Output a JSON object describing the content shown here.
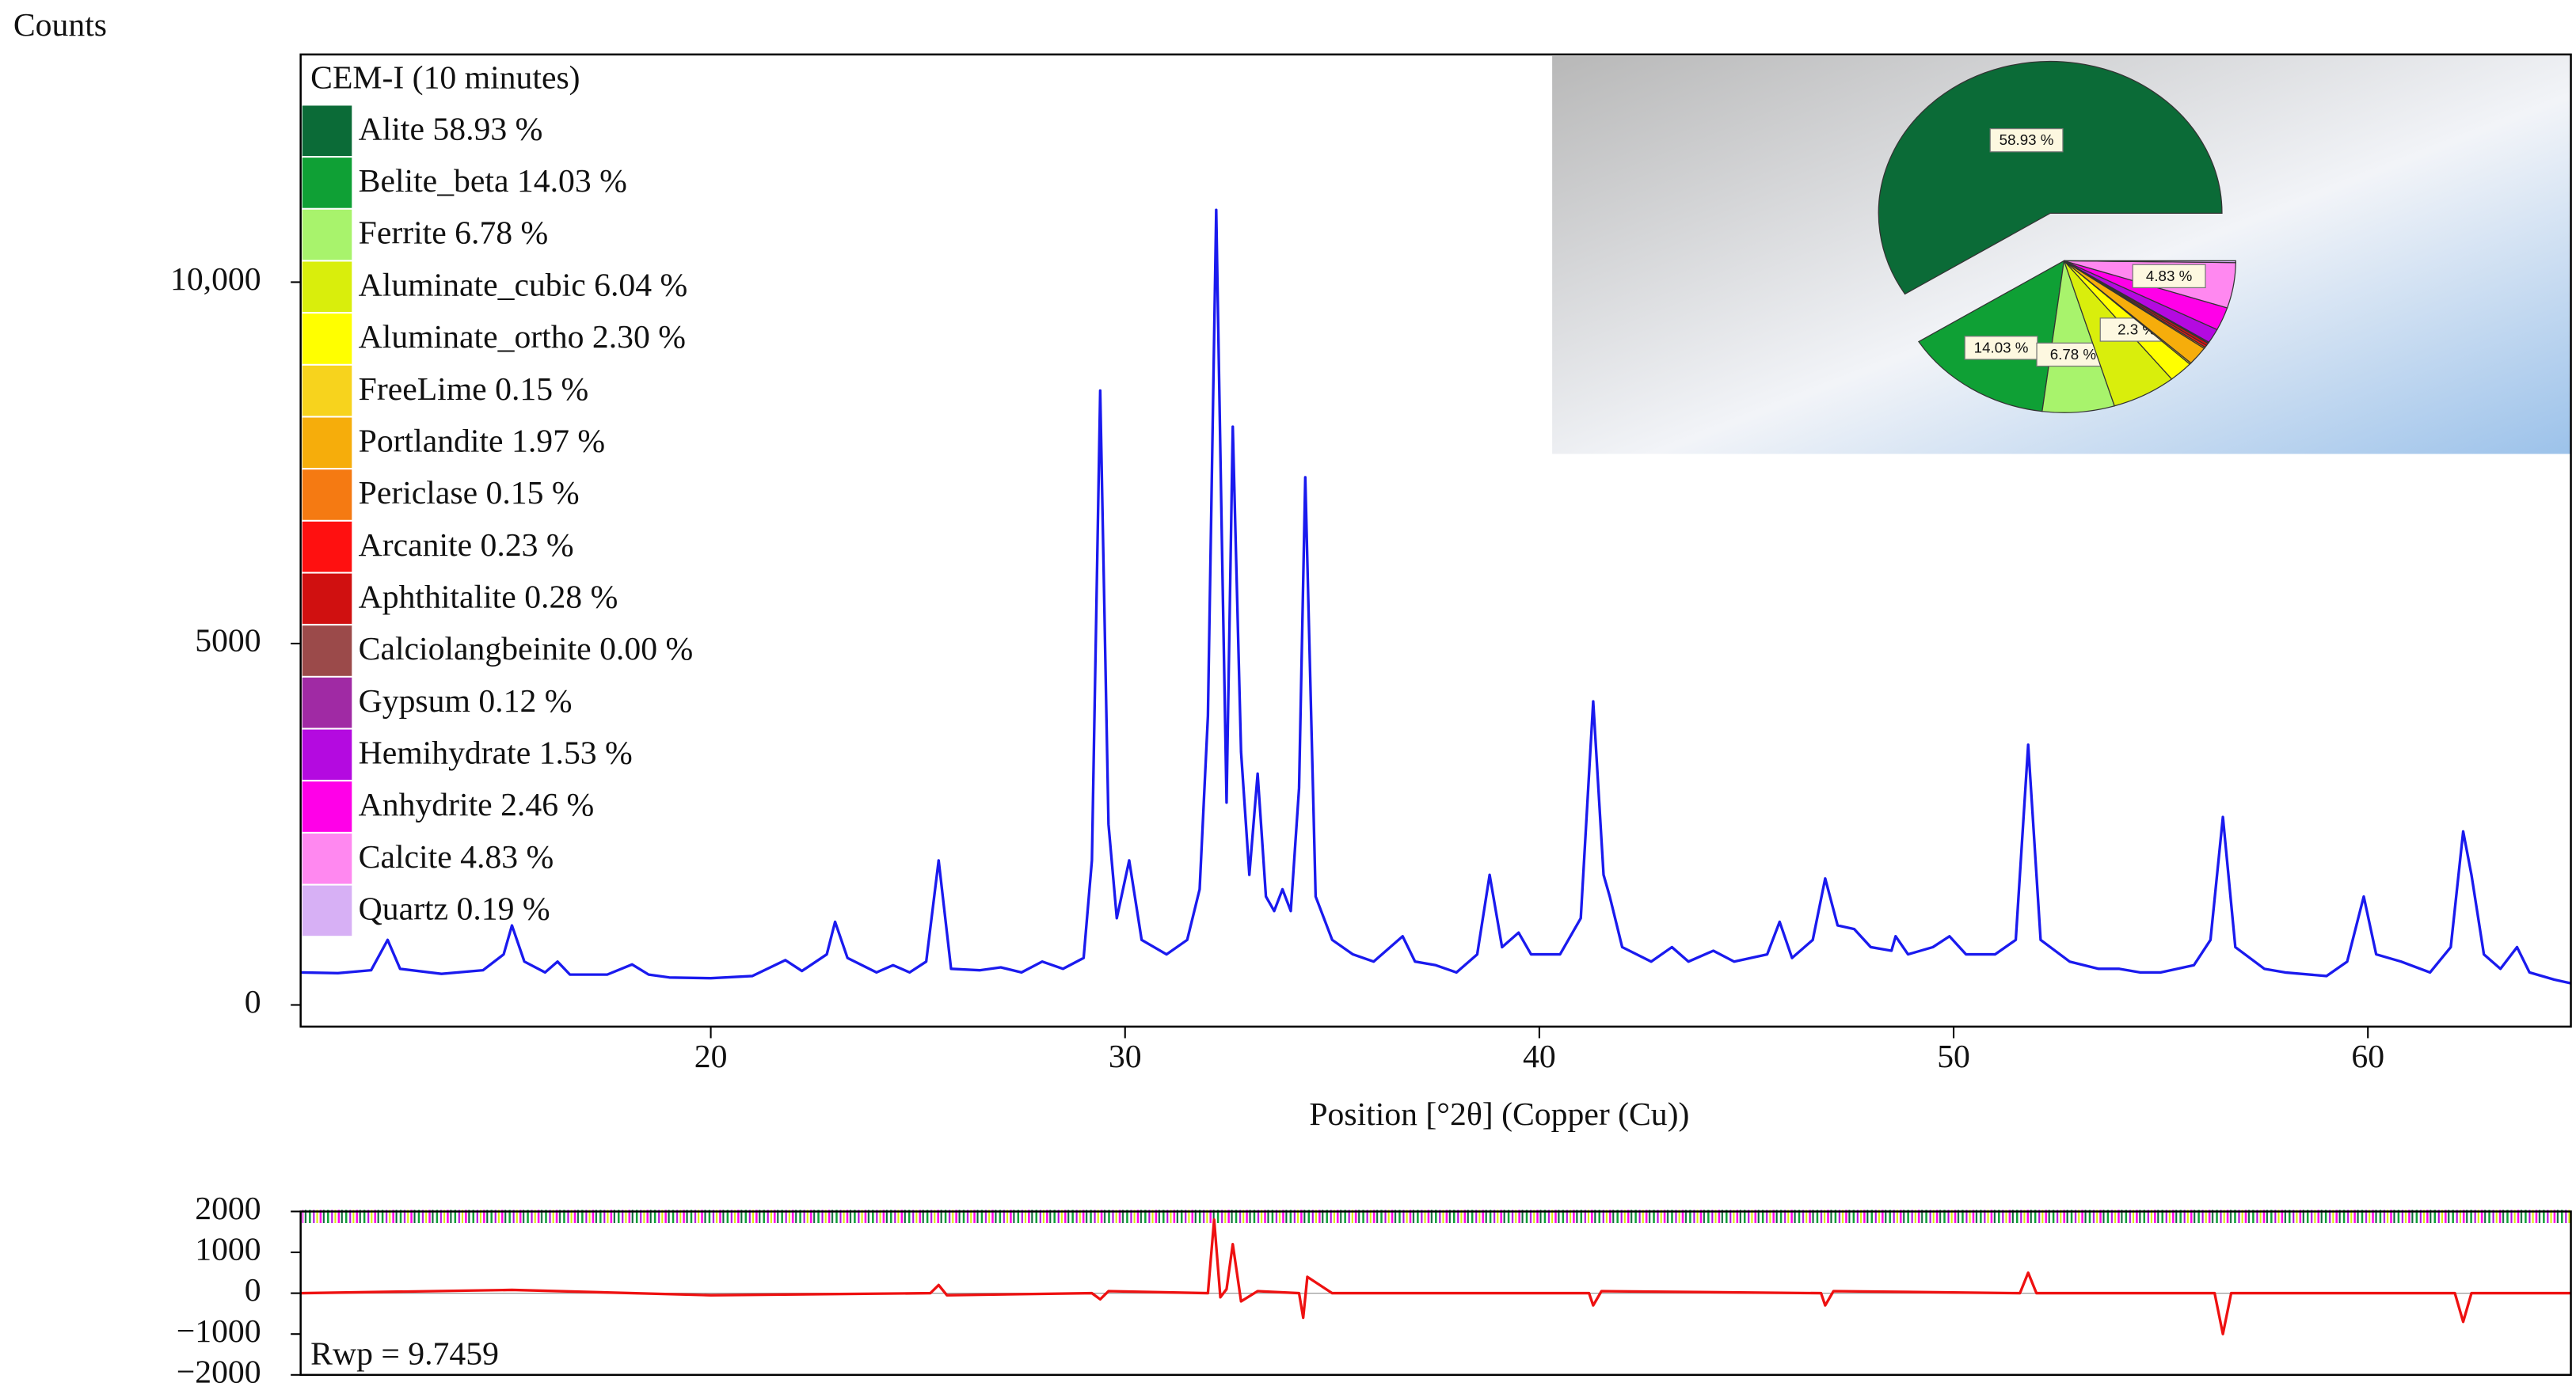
{
  "chart_data": [
    {
      "type": "line",
      "y_label": "Counts",
      "x_label": "Position [°2θ] (Copper (Cu))",
      "legend_title": "CEM-I (10 minutes)",
      "xlim": [
        10.1,
        64.9
      ],
      "ylim": [
        -300,
        13150
      ],
      "xticks": [
        20,
        30,
        40,
        50,
        60
      ],
      "yticks": [
        0,
        5000,
        {
          "value": 10000,
          "label": "10,000"
        }
      ],
      "x": [
        10.1,
        11,
        11.8,
        12.2,
        12.5,
        13.5,
        14.5,
        15.0,
        15.2,
        15.5,
        16.0,
        16.3,
        16.6,
        17.5,
        18.1,
        18.5,
        19,
        20,
        21,
        21.8,
        22.2,
        22.8,
        23.0,
        23.3,
        24,
        24.4,
        24.8,
        25.2,
        25.5,
        25.8,
        26.5,
        27,
        27.5,
        28,
        28.5,
        29,
        29.2,
        29.4,
        29.6,
        29.8,
        30.1,
        30.4,
        31,
        31.5,
        31.8,
        32.0,
        32.2,
        32.35,
        32.45,
        32.6,
        32.8,
        33.0,
        33.2,
        33.4,
        33.6,
        33.8,
        34.0,
        34.2,
        34.35,
        34.6,
        35,
        35.5,
        36,
        36.7,
        37,
        37.5,
        38,
        38.5,
        38.8,
        39.1,
        39.5,
        39.8,
        40.5,
        41.0,
        41.3,
        41.55,
        41.7,
        42,
        42.7,
        43.2,
        43.6,
        44.2,
        44.7,
        45.5,
        45.8,
        46.1,
        46.6,
        46.9,
        47.2,
        47.6,
        48,
        48.5,
        48.6,
        48.9,
        49.5,
        49.9,
        50.3,
        51,
        51.5,
        51.8,
        52.1,
        52.8,
        53.5,
        54,
        54.5,
        55,
        55.8,
        56.2,
        56.5,
        56.8,
        57.5,
        58,
        59,
        59.5,
        59.9,
        60.2,
        60.8,
        61.5,
        62,
        62.3,
        62.5,
        62.8,
        63.2,
        63.6,
        63.9,
        64.5,
        64.9
      ],
      "series": [
        {
          "color": "#1a1aee",
          "values": [
            450,
            440,
            480,
            900,
            500,
            430,
            480,
            700,
            1100,
            600,
            450,
            600,
            420,
            420,
            560,
            420,
            380,
            370,
            400,
            620,
            470,
            700,
            1150,
            650,
            450,
            550,
            450,
            600,
            2000,
            500,
            480,
            520,
            450,
            600,
            500,
            650,
            2000,
            8500,
            2500,
            1200,
            2000,
            900,
            700,
            900,
            1600,
            4000,
            11000,
            6000,
            2800,
            8000,
            3500,
            1800,
            3200,
            1500,
            1300,
            1600,
            1300,
            3000,
            7300,
            1500,
            900,
            700,
            600,
            950,
            600,
            550,
            450,
            700,
            1800,
            800,
            1000,
            700,
            700,
            1200,
            4200,
            1800,
            1500,
            800,
            600,
            800,
            600,
            750,
            600,
            700,
            1150,
            650,
            900,
            1750,
            1100,
            1050,
            800,
            750,
            950,
            700,
            800,
            950,
            700,
            700,
            900,
            3600,
            900,
            600,
            500,
            500,
            450,
            450,
            550,
            900,
            2600,
            800,
            500,
            450,
            400,
            600,
            1500,
            700,
            600,
            450,
            800,
            2400,
            1800,
            700,
            500,
            800,
            450,
            350,
            300
          ]
        }
      ]
    },
    {
      "type": "pie",
      "categories": [
        "Alite 58.93 %",
        "Belite_beta 14.03 %",
        "Ferrite 6.78 %",
        "Aluminate_cubic 6.04 %",
        "Aluminate_ortho 2.30 %",
        "FreeLime 0.15 %",
        "Portlandite 1.97 %",
        "Periclase 0.15 %",
        "Arcanite 0.23 %",
        "Aphthitalite 0.28 %",
        "Calciolangbeinite 0.00 %",
        "Gypsum 0.12 %",
        "Hemihydrate 1.53 %",
        "Anhydrite 2.46 %",
        "Calcite 4.83 %",
        "Quartz 0.19 %"
      ],
      "values": [
        58.93,
        14.03,
        6.78,
        6.04,
        2.3,
        0.15,
        1.97,
        0.15,
        0.23,
        0.28,
        0.0,
        0.12,
        1.53,
        2.46,
        4.83,
        0.19
      ],
      "value_labels": [
        "58.93 %",
        "14.03 %",
        "6.78 %",
        null,
        "2.3 %",
        null,
        null,
        null,
        null,
        null,
        null,
        null,
        null,
        null,
        "4.83 %",
        null
      ],
      "colors": [
        "#0b6b37",
        "#0fa035",
        "#a8f36c",
        "#d9ee0c",
        "#ffff00",
        "#f7d31d",
        "#f6ad0b",
        "#f57a12",
        "#ff1010",
        "#d01010",
        "#9b4a4a",
        "#a02aa4",
        "#b40ae0",
        "#ff00e8",
        "#ff88f0",
        "#d7b0f5"
      ]
    },
    {
      "type": "line",
      "annotation": "Rwp = 9.7459",
      "xlim": [
        10.1,
        64.9
      ],
      "ylim": [
        -2000,
        2000
      ],
      "yticks": [
        {
          "value": -2000,
          "label": "−2000"
        },
        {
          "value": -1000,
          "label": "−1000"
        },
        0,
        1000,
        2000
      ],
      "x": [
        10.1,
        15.2,
        20,
        25.3,
        25.5,
        25.7,
        29.2,
        29.4,
        29.6,
        32.0,
        32.15,
        32.3,
        32.45,
        32.6,
        32.8,
        33.2,
        34.2,
        34.3,
        34.4,
        35,
        41.2,
        41.3,
        41.5,
        46.8,
        46.9,
        47.1,
        51.6,
        51.8,
        52.0,
        56.3,
        56.5,
        56.7,
        62.1,
        62.3,
        62.5,
        64.9
      ],
      "series": [
        {
          "color": "#ee1111",
          "values": [
            0,
            80,
            -50,
            0,
            200,
            -50,
            0,
            -150,
            50,
            0,
            1800,
            -100,
            100,
            1200,
            -200,
            50,
            0,
            -600,
            400,
            0,
            0,
            -300,
            50,
            0,
            -300,
            50,
            0,
            500,
            0,
            0,
            -1000,
            0,
            0,
            -700,
            0,
            0
          ]
        }
      ]
    }
  ]
}
